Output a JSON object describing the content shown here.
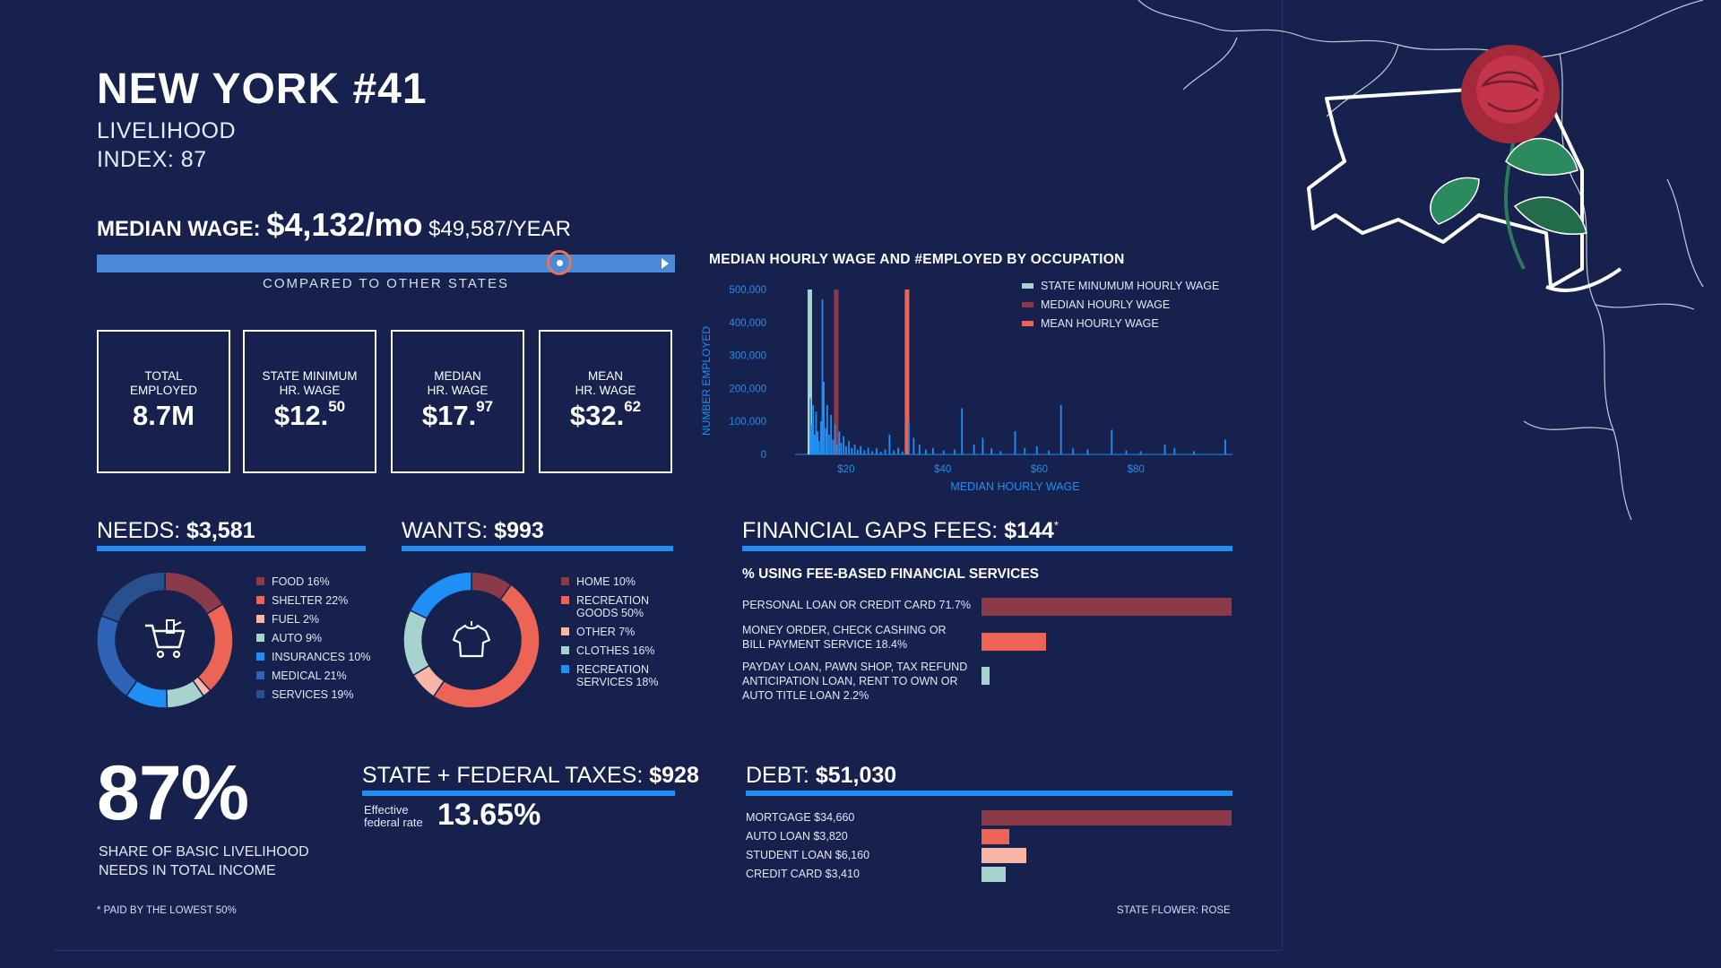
{
  "header": {
    "title": "NEW YORK #41",
    "sub1": "LIVELIHOOD",
    "sub2": "INDEX: 87"
  },
  "median_wage": {
    "label": "MEDIAN WAGE:",
    "monthly": "$4,132/mo",
    "yearly": "$49,587/YEAR",
    "comparison_caption": "COMPARED TO OTHER STATES",
    "comparison_position": 0.8
  },
  "stats": [
    {
      "label1": "TOTAL",
      "label2": "EMPLOYED",
      "value": "8.7M",
      "sup": ""
    },
    {
      "label1": "STATE MINIMUM",
      "label2": "HR. WAGE",
      "value": "$12.",
      "sup": "50"
    },
    {
      "label1": "MEDIAN",
      "label2": "HR. WAGE",
      "value": "$17.",
      "sup": "97"
    },
    {
      "label1": "MEAN",
      "label2": "HR. WAGE",
      "value": "$32.",
      "sup": "62"
    }
  ],
  "needs": {
    "label": "NEEDS:",
    "value": "$3,581",
    "icon": "shopping-cart-icon",
    "items": [
      {
        "label": "FOOD 16%",
        "color": "#8b3a4a"
      },
      {
        "label": "SHELTER 22%",
        "color": "#ec6456"
      },
      {
        "label": "FUEL 2%",
        "color": "#f7b6a6"
      },
      {
        "label": "AUTO 9%",
        "color": "#a7d3cf"
      },
      {
        "label": "INSURANCES 10%",
        "color": "#1e8ff5"
      },
      {
        "label": "MEDICAL 21%",
        "color": "#2f63b8"
      },
      {
        "label": "SERVICES 19%",
        "color": "#2a4f8f"
      }
    ]
  },
  "wants": {
    "label": "WANTS:",
    "value": "$993",
    "icon": "t-shirt-icon",
    "items": [
      {
        "label1": "HOME 10%",
        "label2": "",
        "color": "#8b3a4a"
      },
      {
        "label1": "RECREATION",
        "label2": "GOODS 50%",
        "color": "#ec6456"
      },
      {
        "label1": "OTHER 7%",
        "label2": "",
        "color": "#f7b6a6"
      },
      {
        "label1": "CLOTHES 16%",
        "label2": "",
        "color": "#a7d3cf"
      },
      {
        "label1": "RECREATION",
        "label2": "SERVICES 18%",
        "color": "#1e8ff5"
      }
    ]
  },
  "financial_gaps": {
    "label": "FINANCIAL GAPS FEES:",
    "value": "$144",
    "asterisk": "*",
    "subtitle": "% USING FEE-BASED FINANCIAL SERVICES",
    "items": [
      {
        "lines": [
          "PERSONAL LOAN OR CREDIT CARD 71.7%"
        ],
        "pct": 71.7,
        "color": "#8b3a4a"
      },
      {
        "lines": [
          "MONEY ORDER, CHECK CASHING OR",
          "BILL PAYMENT SERVICE 18.4%"
        ],
        "pct": 18.4,
        "color": "#ec6456"
      },
      {
        "lines": [
          "PAYDAY LOAN, PAWN SHOP, TAX REFUND",
          "ANTICIPATION LOAN, RENT TO OWN OR",
          "AUTO TITLE LOAN 2.2%"
        ],
        "pct": 2.2,
        "color": "#a7d3cf"
      }
    ]
  },
  "taxes": {
    "label": "STATE + FEDERAL TAXES:",
    "value": "$928",
    "small1": "Effective",
    "small2": "federal rate",
    "rate": "13.65%"
  },
  "debt": {
    "label": "DEBT:",
    "value": "$51,030",
    "items": [
      {
        "label": "MORTGAGE $34,660",
        "amount": 34660,
        "color": "#8b3a4a"
      },
      {
        "label": "AUTO LOAN $3,820",
        "amount": 3820,
        "color": "#ec6456"
      },
      {
        "label": "STUDENT LOAN $6,160",
        "amount": 6160,
        "color": "#f7b6a6"
      },
      {
        "label": "CREDIT CARD $3,410",
        "amount": 3410,
        "color": "#a7d3cf"
      }
    ]
  },
  "share": {
    "value": "87%",
    "caption1": "SHARE OF BASIC LIVELIHOOD",
    "caption2": "NEEDS IN TOTAL INCOME"
  },
  "footnote": "* PAID BY THE LOWEST 50%",
  "state_flower": "STATE FLOWER: ROSE",
  "chart_data": [
    {
      "type": "bar",
      "title": "MEDIAN HOURLY WAGE AND #EMPLOYED BY OCCUPATION",
      "xlabel": "MEDIAN HOURLY WAGE",
      "ylabel": "NUMBER EMPLOYED",
      "xlim": [
        10,
        100
      ],
      "ylim": [
        0,
        500000
      ],
      "x_ticks": [
        {
          "v": 20,
          "label": "$20"
        },
        {
          "v": 40,
          "label": "$40"
        },
        {
          "v": 60,
          "label": "$60"
        },
        {
          "v": 80,
          "label": "$80"
        }
      ],
      "y_ticks": [
        {
          "v": 0,
          "label": "0"
        },
        {
          "v": 100000,
          "label": "100,000"
        },
        {
          "v": 200000,
          "label": "200,000"
        },
        {
          "v": 300000,
          "label": "300,000"
        },
        {
          "v": 400000,
          "label": "400,000"
        },
        {
          "v": 500000,
          "label": "500,000"
        }
      ],
      "legend": [
        {
          "label": "STATE MINUMUM HOURLY WAGE",
          "color": "#a7d3cf"
        },
        {
          "label": "MEDIAN HOURLY WAGE",
          "color": "#8b3a4a"
        },
        {
          "label": "MEAN HOURLY WAGE",
          "color": "#ec6456"
        }
      ],
      "reference_lines": [
        {
          "name": "STATE MINUMUM HOURLY WAGE",
          "x": 12.5,
          "color": "#a7d3cf"
        },
        {
          "name": "MEDIAN HOURLY WAGE",
          "x": 17.97,
          "color": "#8b3a4a"
        },
        {
          "name": "MEAN HOURLY WAGE",
          "x": 32.62,
          "color": "#ec6456"
        }
      ],
      "bars": [
        {
          "x": 12.6,
          "y": 170000
        },
        {
          "x": 12.9,
          "y": 90000
        },
        {
          "x": 13.2,
          "y": 150000
        },
        {
          "x": 13.5,
          "y": 60000
        },
        {
          "x": 13.8,
          "y": 130000
        },
        {
          "x": 14.1,
          "y": 70000
        },
        {
          "x": 14.4,
          "y": 40000
        },
        {
          "x": 14.8,
          "y": 100000
        },
        {
          "x": 15.1,
          "y": 470000
        },
        {
          "x": 15.4,
          "y": 220000
        },
        {
          "x": 15.8,
          "y": 80000
        },
        {
          "x": 16.1,
          "y": 150000
        },
        {
          "x": 16.5,
          "y": 60000
        },
        {
          "x": 16.9,
          "y": 120000
        },
        {
          "x": 17.3,
          "y": 45000
        },
        {
          "x": 17.7,
          "y": 90000
        },
        {
          "x": 18.1,
          "y": 30000
        },
        {
          "x": 18.6,
          "y": 70000
        },
        {
          "x": 19.0,
          "y": 35000
        },
        {
          "x": 19.5,
          "y": 55000
        },
        {
          "x": 20.0,
          "y": 25000
        },
        {
          "x": 20.6,
          "y": 40000
        },
        {
          "x": 21.2,
          "y": 20000
        },
        {
          "x": 21.8,
          "y": 30000
        },
        {
          "x": 22.4,
          "y": 15000
        },
        {
          "x": 23.0,
          "y": 25000
        },
        {
          "x": 23.8,
          "y": 12000
        },
        {
          "x": 24.6,
          "y": 20000
        },
        {
          "x": 25.4,
          "y": 10000
        },
        {
          "x": 26.3,
          "y": 18000
        },
        {
          "x": 27.2,
          "y": 8000
        },
        {
          "x": 28.1,
          "y": 15000
        },
        {
          "x": 29.0,
          "y": 60000
        },
        {
          "x": 29.9,
          "y": 12000
        },
        {
          "x": 30.8,
          "y": 20000
        },
        {
          "x": 31.7,
          "y": 9000
        },
        {
          "x": 33.0,
          "y": 100000
        },
        {
          "x": 34.0,
          "y": 50000
        },
        {
          "x": 35.2,
          "y": 30000
        },
        {
          "x": 36.5,
          "y": 15000
        },
        {
          "x": 38.0,
          "y": 20000
        },
        {
          "x": 40.2,
          "y": 12000
        },
        {
          "x": 42.5,
          "y": 15000
        },
        {
          "x": 44.0,
          "y": 140000
        },
        {
          "x": 46.5,
          "y": 30000
        },
        {
          "x": 48.3,
          "y": 50000
        },
        {
          "x": 50.1,
          "y": 18000
        },
        {
          "x": 52.0,
          "y": 10000
        },
        {
          "x": 55.0,
          "y": 70000
        },
        {
          "x": 57.0,
          "y": 20000
        },
        {
          "x": 59.5,
          "y": 25000
        },
        {
          "x": 62.0,
          "y": 12000
        },
        {
          "x": 64.5,
          "y": 150000
        },
        {
          "x": 67.0,
          "y": 18000
        },
        {
          "x": 70.0,
          "y": 15000
        },
        {
          "x": 75.0,
          "y": 75000
        },
        {
          "x": 78.0,
          "y": 12000
        },
        {
          "x": 81.0,
          "y": 10000
        },
        {
          "x": 86.0,
          "y": 30000
        },
        {
          "x": 88.0,
          "y": 20000
        },
        {
          "x": 92.0,
          "y": 10000
        },
        {
          "x": 98.5,
          "y": 45000
        }
      ]
    },
    {
      "type": "pie",
      "title": "NEEDS: $3,581",
      "labels": [
        "FOOD",
        "SHELTER",
        "FUEL",
        "AUTO",
        "INSURANCES",
        "MEDICAL",
        "SERVICES"
      ],
      "values": [
        16,
        22,
        2,
        9,
        10,
        21,
        19
      ],
      "colors": [
        "#8b3a4a",
        "#ec6456",
        "#f7b6a6",
        "#a7d3cf",
        "#1e8ff5",
        "#2f63b8",
        "#2a4f8f"
      ]
    },
    {
      "type": "pie",
      "title": "WANTS: $993",
      "labels": [
        "HOME",
        "RECREATION GOODS",
        "OTHER",
        "CLOTHES",
        "RECREATION SERVICES"
      ],
      "values": [
        10,
        50,
        7,
        16,
        18
      ],
      "colors": [
        "#8b3a4a",
        "#ec6456",
        "#f7b6a6",
        "#a7d3cf",
        "#1e8ff5"
      ]
    }
  ]
}
